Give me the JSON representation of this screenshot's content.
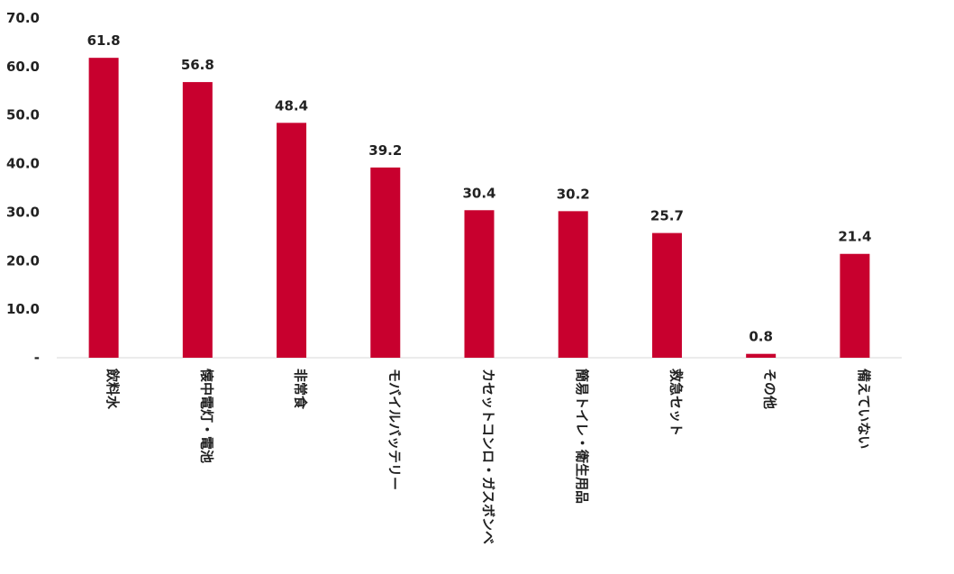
{
  "chart_data": {
    "type": "bar",
    "title": "",
    "xlabel": "",
    "ylabel": "",
    "categories": [
      "飲料水",
      "懐中電灯・電池",
      "非常食",
      "モバイルバッテリー",
      "カセットコンロ・ガスボンベ",
      "簡易トイレ・衛生用品",
      "救急セット",
      "その他",
      "備えていない"
    ],
    "values": [
      61.8,
      56.8,
      48.4,
      39.2,
      30.4,
      30.2,
      25.7,
      0.8,
      21.4
    ],
    "value_labels": [
      "61.8",
      "56.8",
      "48.4",
      "39.2",
      "30.4",
      "30.2",
      "25.7",
      "0.8",
      "21.4"
    ],
    "ylim": [
      0,
      70
    ],
    "yticks": [
      {
        "value": 0,
        "label": "-"
      },
      {
        "value": 10,
        "label": "10.0"
      },
      {
        "value": 20,
        "label": "20.0"
      },
      {
        "value": 30,
        "label": "30.0"
      },
      {
        "value": 40,
        "label": "40.0"
      },
      {
        "value": 50,
        "label": "50.0"
      },
      {
        "value": 60,
        "label": "60.0"
      },
      {
        "value": 70,
        "label": "70.0"
      }
    ],
    "grid": false,
    "legend": "none",
    "bar_color": "#c8002e",
    "axis_color": "#d9d9d9"
  }
}
